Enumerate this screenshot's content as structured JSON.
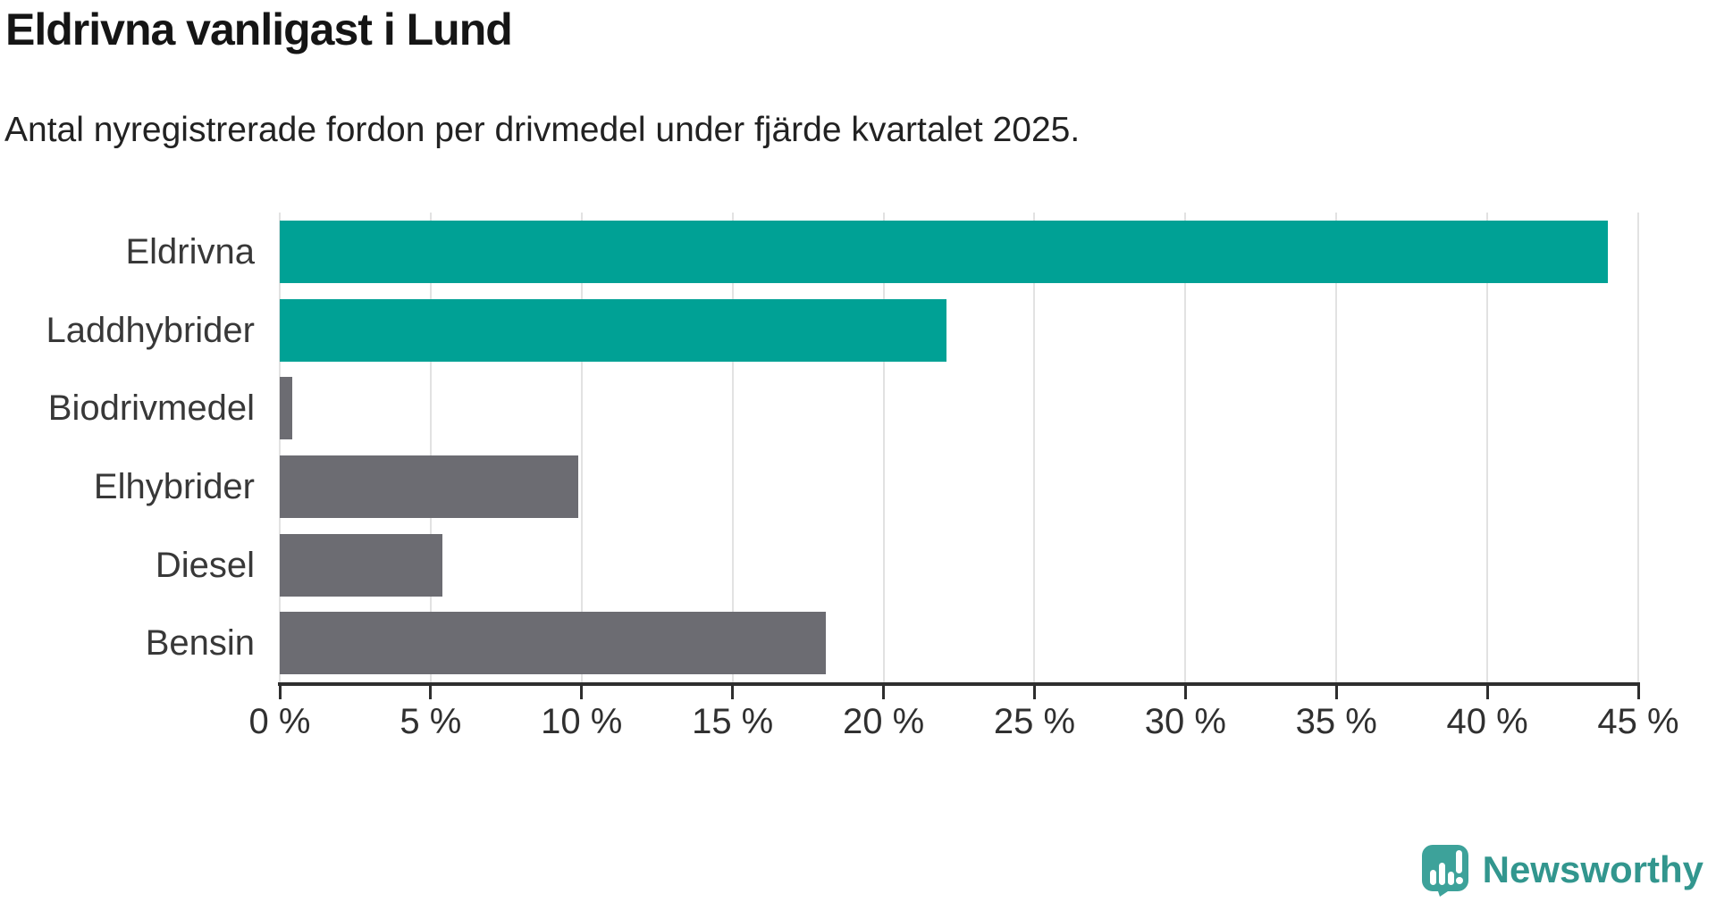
{
  "chart_data": {
    "type": "bar",
    "orientation": "horizontal",
    "title": "Eldrivna vanligast i Lund",
    "subtitle": "Antal nyregistrerade fordon per drivmedel under fjärde kvartalet 2025.",
    "categories": [
      "Eldrivna",
      "Laddhybrider",
      "Biodrivmedel",
      "Elhybrider",
      "Diesel",
      "Bensin"
    ],
    "values": [
      44,
      22.1,
      0.4,
      9.9,
      5.4,
      18.1
    ],
    "bar_colors": [
      "#00a195",
      "#00a195",
      "#6c6c72",
      "#6c6c72",
      "#6c6c72",
      "#6c6c72"
    ],
    "xlabel": "",
    "ylabel": "",
    "xlim": [
      0,
      45
    ],
    "x_ticks": [
      {
        "value": 0,
        "label": "0 %"
      },
      {
        "value": 5,
        "label": "5 %"
      },
      {
        "value": 10,
        "label": "10 %"
      },
      {
        "value": 15,
        "label": "15 %"
      },
      {
        "value": 20,
        "label": "20 %"
      },
      {
        "value": 25,
        "label": "25 %"
      },
      {
        "value": 30,
        "label": "30 %"
      },
      {
        "value": 35,
        "label": "35 %"
      },
      {
        "value": 40,
        "label": "40 %"
      },
      {
        "value": 45,
        "label": "45 %"
      }
    ],
    "grid": "vertical-only",
    "legend": "none"
  },
  "colors": {
    "accent_teal": "#00a195",
    "bar_gray": "#6c6c72",
    "gridline": "#e2e2e2",
    "axis": "#2e2e2e",
    "tick_text": "#303030",
    "label_text": "#383838",
    "title_text": "#151515",
    "logo_icon_teal": "#3da29a",
    "logo_text_teal": "#32968e"
  },
  "footer": {
    "brand": "Newsworthy"
  }
}
